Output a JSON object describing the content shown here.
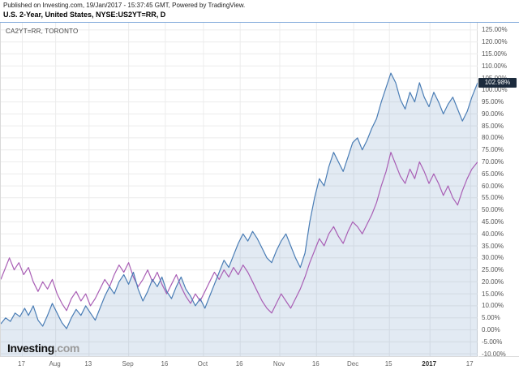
{
  "header": {
    "published_line": "Published on Investing.com, 19/Jan/2017 - 15:37:45 GMT, Powered by TradingView.",
    "symbol_line": "U.S. 2-Year, United States, NYSE:US2YT=RR, D"
  },
  "overlay": {
    "compare_label": "CA2YT=RR, TORONTO"
  },
  "badge": {
    "value": "102.98%",
    "bg": "#1c2b3d",
    "fg": "#ffffff"
  },
  "logo": {
    "brand": "Investing",
    "tld": ".com"
  },
  "colors": {
    "grid": "#ececec",
    "frame": "#d9d9d9",
    "axis_text": "#555555",
    "header_rule": "#7da7d9"
  },
  "chart_data": {
    "type": "line",
    "title": "U.S. 2-Year, United States, NYSE:US2YT=RR, D (vs CA2YT=RR, TORONTO) — percent change",
    "xlabel": "",
    "ylabel": "",
    "ylim": [
      -11,
      128
    ],
    "grid": true,
    "legend_position": "none",
    "last_value": 102.98,
    "y_ticks": [
      {
        "v": 125,
        "label": "125.00%"
      },
      {
        "v": 120,
        "label": "120.00%"
      },
      {
        "v": 115,
        "label": "115.00%"
      },
      {
        "v": 110,
        "label": "110.00%"
      },
      {
        "v": 105,
        "label": "105.00%"
      },
      {
        "v": 100,
        "label": "100.00%"
      },
      {
        "v": 95,
        "label": "95.00%"
      },
      {
        "v": 90,
        "label": "90.00%"
      },
      {
        "v": 85,
        "label": "85.00%"
      },
      {
        "v": 80,
        "label": "80.00%"
      },
      {
        "v": 75,
        "label": "75.00%"
      },
      {
        "v": 70,
        "label": "70.00%"
      },
      {
        "v": 65,
        "label": "65.00%"
      },
      {
        "v": 60,
        "label": "60.00%"
      },
      {
        "v": 55,
        "label": "55.00%"
      },
      {
        "v": 50,
        "label": "50.00%"
      },
      {
        "v": 45,
        "label": "45.00%"
      },
      {
        "v": 40,
        "label": "40.00%"
      },
      {
        "v": 35,
        "label": "35.00%"
      },
      {
        "v": 30,
        "label": "30.00%"
      },
      {
        "v": 25,
        "label": "25.00%"
      },
      {
        "v": 20,
        "label": "20.00%"
      },
      {
        "v": 15,
        "label": "15.00%"
      },
      {
        "v": 10,
        "label": "10.00%"
      },
      {
        "v": 5,
        "label": "5.00%"
      },
      {
        "v": 0,
        "label": "0.00%"
      },
      {
        "v": -5,
        "label": "-5.00%"
      },
      {
        "v": -10,
        "label": "-10.00%"
      }
    ],
    "x_ticks": [
      {
        "pos": 0.045,
        "label": "17"
      },
      {
        "pos": 0.115,
        "label": "Aug"
      },
      {
        "pos": 0.185,
        "label": "13"
      },
      {
        "pos": 0.268,
        "label": "Sep"
      },
      {
        "pos": 0.345,
        "label": "16"
      },
      {
        "pos": 0.425,
        "label": "Oct"
      },
      {
        "pos": 0.502,
        "label": "16"
      },
      {
        "pos": 0.585,
        "label": "Nov"
      },
      {
        "pos": 0.662,
        "label": "16"
      },
      {
        "pos": 0.74,
        "label": "Dec"
      },
      {
        "pos": 0.815,
        "label": "15"
      },
      {
        "pos": 0.9,
        "label": "2017",
        "strong": true
      },
      {
        "pos": 0.985,
        "label": "17"
      }
    ],
    "series": [
      {
        "name": "NYSE:US2YT=RR",
        "style": "area",
        "color": "#4a7db5",
        "fill": "rgba(74,125,181,0.16)",
        "points": [
          [
            0.0,
            2.5
          ],
          [
            0.01,
            5
          ],
          [
            0.02,
            3.5
          ],
          [
            0.03,
            7
          ],
          [
            0.04,
            5.5
          ],
          [
            0.05,
            9
          ],
          [
            0.058,
            6
          ],
          [
            0.068,
            10
          ],
          [
            0.078,
            4
          ],
          [
            0.088,
            1.5
          ],
          [
            0.098,
            6
          ],
          [
            0.108,
            11
          ],
          [
            0.118,
            7
          ],
          [
            0.128,
            3
          ],
          [
            0.138,
            0.5
          ],
          [
            0.148,
            5
          ],
          [
            0.158,
            8.5
          ],
          [
            0.168,
            6
          ],
          [
            0.178,
            10
          ],
          [
            0.188,
            7
          ],
          [
            0.198,
            4
          ],
          [
            0.208,
            9
          ],
          [
            0.218,
            14
          ],
          [
            0.228,
            18
          ],
          [
            0.238,
            15
          ],
          [
            0.248,
            20
          ],
          [
            0.258,
            23
          ],
          [
            0.268,
            19
          ],
          [
            0.278,
            24
          ],
          [
            0.288,
            17
          ],
          [
            0.298,
            12
          ],
          [
            0.308,
            16
          ],
          [
            0.318,
            21
          ],
          [
            0.328,
            18
          ],
          [
            0.338,
            22
          ],
          [
            0.348,
            16
          ],
          [
            0.358,
            13
          ],
          [
            0.368,
            18
          ],
          [
            0.378,
            22
          ],
          [
            0.388,
            17
          ],
          [
            0.398,
            14
          ],
          [
            0.408,
            10
          ],
          [
            0.418,
            13
          ],
          [
            0.428,
            9
          ],
          [
            0.438,
            14
          ],
          [
            0.448,
            19
          ],
          [
            0.458,
            24
          ],
          [
            0.468,
            29
          ],
          [
            0.478,
            26
          ],
          [
            0.488,
            31
          ],
          [
            0.498,
            36
          ],
          [
            0.508,
            40
          ],
          [
            0.518,
            37
          ],
          [
            0.528,
            41
          ],
          [
            0.538,
            38
          ],
          [
            0.548,
            34
          ],
          [
            0.558,
            30
          ],
          [
            0.568,
            28
          ],
          [
            0.578,
            33
          ],
          [
            0.588,
            37
          ],
          [
            0.598,
            40
          ],
          [
            0.608,
            35
          ],
          [
            0.618,
            30
          ],
          [
            0.628,
            26
          ],
          [
            0.638,
            32
          ],
          [
            0.648,
            45
          ],
          [
            0.658,
            55
          ],
          [
            0.668,
            63
          ],
          [
            0.678,
            60
          ],
          [
            0.688,
            68
          ],
          [
            0.698,
            74
          ],
          [
            0.708,
            70
          ],
          [
            0.718,
            66
          ],
          [
            0.728,
            72
          ],
          [
            0.738,
            78
          ],
          [
            0.748,
            80
          ],
          [
            0.758,
            75
          ],
          [
            0.768,
            79
          ],
          [
            0.778,
            84
          ],
          [
            0.788,
            88
          ],
          [
            0.798,
            95
          ],
          [
            0.808,
            101
          ],
          [
            0.818,
            107
          ],
          [
            0.828,
            103
          ],
          [
            0.838,
            96
          ],
          [
            0.848,
            92
          ],
          [
            0.858,
            99
          ],
          [
            0.868,
            95
          ],
          [
            0.878,
            103
          ],
          [
            0.888,
            97
          ],
          [
            0.898,
            93
          ],
          [
            0.908,
            99
          ],
          [
            0.918,
            95
          ],
          [
            0.928,
            90
          ],
          [
            0.938,
            94
          ],
          [
            0.948,
            97
          ],
          [
            0.958,
            92
          ],
          [
            0.968,
            87
          ],
          [
            0.978,
            91
          ],
          [
            0.988,
            97
          ],
          [
            1.0,
            102.98
          ]
        ]
      },
      {
        "name": "CA2YT=RR, TORONTO",
        "style": "line",
        "color": "#a95fb5",
        "points": [
          [
            0.0,
            21
          ],
          [
            0.01,
            26
          ],
          [
            0.018,
            30
          ],
          [
            0.028,
            25
          ],
          [
            0.038,
            28
          ],
          [
            0.048,
            23
          ],
          [
            0.058,
            26
          ],
          [
            0.068,
            20
          ],
          [
            0.078,
            16
          ],
          [
            0.088,
            20
          ],
          [
            0.098,
            17
          ],
          [
            0.108,
            21
          ],
          [
            0.118,
            15
          ],
          [
            0.128,
            11
          ],
          [
            0.138,
            8
          ],
          [
            0.148,
            13
          ],
          [
            0.158,
            16
          ],
          [
            0.168,
            12
          ],
          [
            0.178,
            15
          ],
          [
            0.188,
            10
          ],
          [
            0.198,
            13
          ],
          [
            0.208,
            17
          ],
          [
            0.218,
            21
          ],
          [
            0.228,
            18
          ],
          [
            0.238,
            23
          ],
          [
            0.248,
            27
          ],
          [
            0.258,
            24
          ],
          [
            0.268,
            28
          ],
          [
            0.278,
            22
          ],
          [
            0.288,
            18
          ],
          [
            0.298,
            21
          ],
          [
            0.308,
            25
          ],
          [
            0.318,
            20
          ],
          [
            0.328,
            24
          ],
          [
            0.338,
            19
          ],
          [
            0.348,
            15
          ],
          [
            0.358,
            19
          ],
          [
            0.368,
            23
          ],
          [
            0.378,
            18
          ],
          [
            0.388,
            14
          ],
          [
            0.398,
            11
          ],
          [
            0.408,
            15
          ],
          [
            0.418,
            12
          ],
          [
            0.428,
            16
          ],
          [
            0.438,
            20
          ],
          [
            0.448,
            24
          ],
          [
            0.458,
            21
          ],
          [
            0.468,
            25
          ],
          [
            0.478,
            22
          ],
          [
            0.488,
            26
          ],
          [
            0.498,
            23
          ],
          [
            0.508,
            27
          ],
          [
            0.518,
            24
          ],
          [
            0.528,
            20
          ],
          [
            0.538,
            16
          ],
          [
            0.548,
            12
          ],
          [
            0.558,
            9
          ],
          [
            0.568,
            7
          ],
          [
            0.578,
            11
          ],
          [
            0.588,
            15
          ],
          [
            0.598,
            12
          ],
          [
            0.608,
            9
          ],
          [
            0.618,
            13
          ],
          [
            0.628,
            17
          ],
          [
            0.638,
            22
          ],
          [
            0.648,
            28
          ],
          [
            0.658,
            33
          ],
          [
            0.668,
            38
          ],
          [
            0.678,
            35
          ],
          [
            0.688,
            40
          ],
          [
            0.698,
            43
          ],
          [
            0.708,
            39
          ],
          [
            0.718,
            36
          ],
          [
            0.728,
            41
          ],
          [
            0.738,
            45
          ],
          [
            0.748,
            43
          ],
          [
            0.758,
            40
          ],
          [
            0.768,
            44
          ],
          [
            0.778,
            48
          ],
          [
            0.788,
            53
          ],
          [
            0.798,
            60
          ],
          [
            0.808,
            66
          ],
          [
            0.818,
            74
          ],
          [
            0.828,
            69
          ],
          [
            0.838,
            64
          ],
          [
            0.848,
            61
          ],
          [
            0.858,
            67
          ],
          [
            0.868,
            63
          ],
          [
            0.878,
            70
          ],
          [
            0.888,
            66
          ],
          [
            0.898,
            61
          ],
          [
            0.908,
            65
          ],
          [
            0.918,
            61
          ],
          [
            0.928,
            56
          ],
          [
            0.938,
            60
          ],
          [
            0.948,
            55
          ],
          [
            0.958,
            52
          ],
          [
            0.968,
            58
          ],
          [
            0.978,
            63
          ],
          [
            0.988,
            67
          ],
          [
            1.0,
            70
          ]
        ]
      }
    ]
  }
}
